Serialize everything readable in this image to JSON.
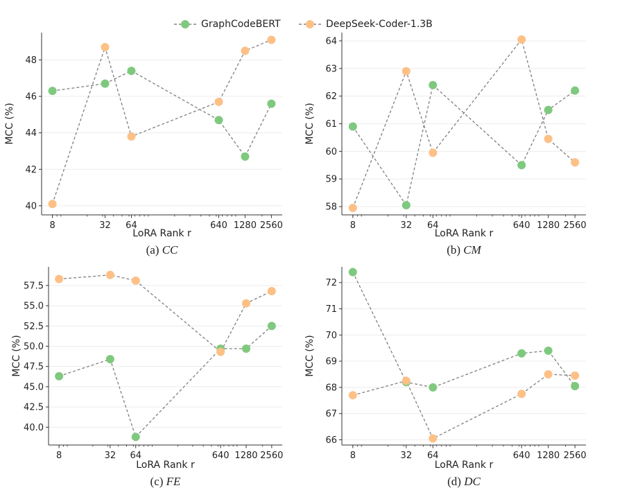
{
  "legend": {
    "series": [
      {
        "name": "GraphCodeBERT",
        "color": "#7fc97f"
      },
      {
        "name": "DeepSeek-Coder-1.3B",
        "color": "#fdc086"
      }
    ]
  },
  "chart_data": [
    {
      "type": "line",
      "caption_prefix": "(a) ",
      "caption_name": "CC",
      "xlabel": "LoRA Rank r",
      "ylabel": "MCC (%)",
      "x": [
        8,
        32,
        64,
        640,
        1280,
        2560
      ],
      "x_tick_labels": [
        "8",
        "32",
        "64",
        "640",
        "1280",
        "2560"
      ],
      "ylim": [
        39.5,
        49.5
      ],
      "y_ticks": [
        40,
        42,
        44,
        46,
        48
      ],
      "y_tick_labels": [
        "40",
        "42",
        "44",
        "46",
        "48"
      ],
      "grid": "horizontal",
      "series": [
        {
          "name": "GraphCodeBERT",
          "values": [
            46.3,
            46.7,
            47.4,
            44.7,
            42.7,
            45.6
          ]
        },
        {
          "name": "DeepSeek-Coder-1.3B",
          "values": [
            40.1,
            48.7,
            43.8,
            45.7,
            48.5,
            49.1
          ]
        }
      ]
    },
    {
      "type": "line",
      "caption_prefix": "(b) ",
      "caption_name": "CM",
      "xlabel": "LoRA Rank r",
      "ylabel": "MCC (%)",
      "x": [
        8,
        32,
        64,
        640,
        1280,
        2560
      ],
      "x_tick_labels": [
        "8",
        "32",
        "64",
        "640",
        "1280",
        "2560"
      ],
      "ylim": [
        57.7,
        64.3
      ],
      "y_ticks": [
        58,
        59,
        60,
        61,
        62,
        63,
        64
      ],
      "y_tick_labels": [
        "58",
        "59",
        "60",
        "61",
        "62",
        "63",
        "64"
      ],
      "grid": "horizontal",
      "series": [
        {
          "name": "GraphCodeBERT",
          "values": [
            60.9,
            58.05,
            62.4,
            59.5,
            61.5,
            62.2
          ]
        },
        {
          "name": "DeepSeek-Coder-1.3B",
          "values": [
            57.95,
            62.9,
            59.95,
            64.05,
            60.45,
            59.6
          ]
        }
      ]
    },
    {
      "type": "line",
      "caption_prefix": "(c) ",
      "caption_name": "FE",
      "xlabel": "LoRA Rank r",
      "ylabel": "MCC (%)",
      "x": [
        8,
        32,
        64,
        640,
        1280,
        2560
      ],
      "x_tick_labels": [
        "8",
        "32",
        "64",
        "640",
        "1280",
        "2560"
      ],
      "ylim": [
        37.8,
        59.8
      ],
      "y_ticks": [
        40,
        42.5,
        45,
        47.5,
        50,
        52.5,
        55,
        57.5
      ],
      "y_tick_labels": [
        "40.0",
        "42.5",
        "45.0",
        "47.5",
        "50.0",
        "52.5",
        "55.0",
        "57.5"
      ],
      "grid": "horizontal",
      "series": [
        {
          "name": "GraphCodeBERT",
          "values": [
            46.3,
            48.4,
            38.8,
            49.7,
            49.7,
            52.5
          ]
        },
        {
          "name": "DeepSeek-Coder-1.3B",
          "values": [
            58.3,
            58.8,
            58.1,
            49.3,
            55.3,
            56.8
          ]
        }
      ]
    },
    {
      "type": "line",
      "caption_prefix": "(d) ",
      "caption_name": "DC",
      "xlabel": "LoRA Rank r",
      "ylabel": "MCC (%)",
      "x": [
        8,
        32,
        64,
        640,
        1280,
        2560
      ],
      "x_tick_labels": [
        "8",
        "32",
        "64",
        "640",
        "1280",
        "2560"
      ],
      "ylim": [
        65.8,
        72.6
      ],
      "y_ticks": [
        66,
        67,
        68,
        69,
        70,
        71,
        72
      ],
      "y_tick_labels": [
        "66",
        "67",
        "68",
        "69",
        "70",
        "71",
        "72"
      ],
      "grid": "horizontal",
      "series": [
        {
          "name": "GraphCodeBERT",
          "values": [
            72.4,
            68.2,
            68.0,
            69.3,
            69.4,
            68.05
          ]
        },
        {
          "name": "DeepSeek-Coder-1.3B",
          "values": [
            67.7,
            68.25,
            66.05,
            67.75,
            68.5,
            68.45
          ]
        }
      ]
    }
  ]
}
